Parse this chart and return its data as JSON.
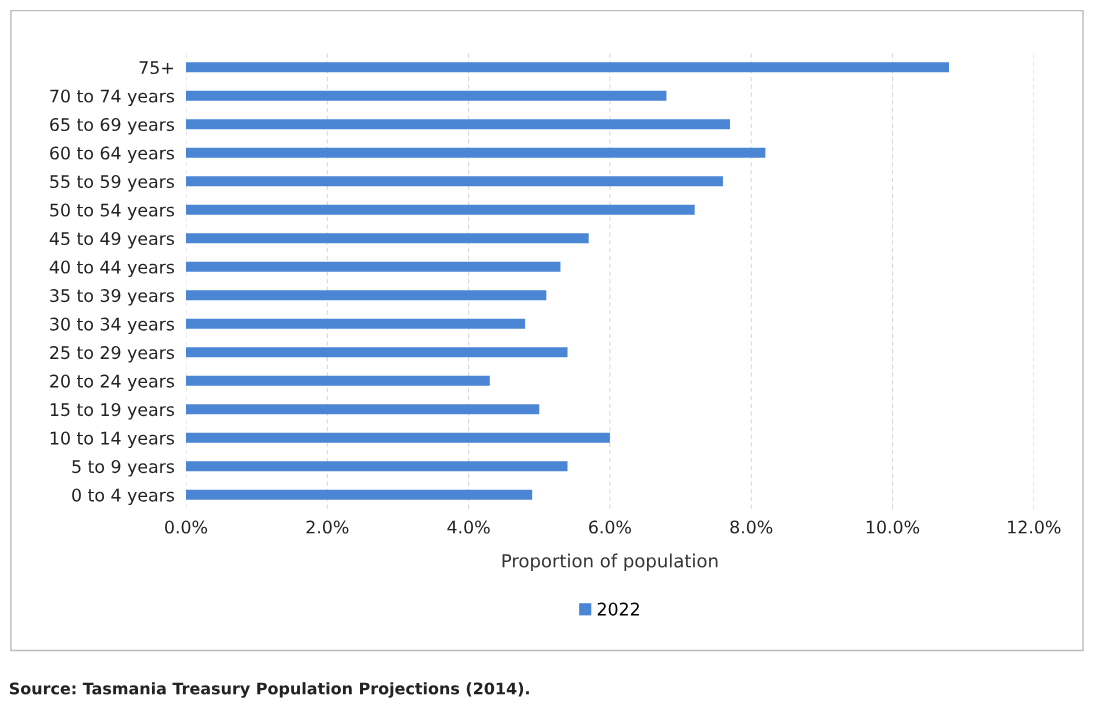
{
  "chart_data": {
    "type": "bar",
    "orientation": "horizontal",
    "categories": [
      "75+",
      "70 to 74 years",
      "65 to 69 years",
      "60 to 64 years",
      "55 to 59 years",
      "50 to 54 years",
      "45 to 49 years",
      "40 to 44 years",
      "35 to 39 years",
      "30 to 34 years",
      "25 to 29 years",
      "20 to 24 years",
      "15 to 19 years",
      "10 to 14 years",
      "5 to 9 years",
      "0 to 4 years"
    ],
    "series": [
      {
        "name": "2022",
        "color": "#4a86d4",
        "values": [
          10.8,
          6.8,
          7.7,
          8.2,
          7.6,
          7.2,
          5.7,
          5.3,
          5.1,
          4.8,
          5.4,
          4.3,
          5.0,
          6.0,
          5.4,
          4.9
        ]
      }
    ],
    "xlabel": "Proportion of population",
    "xlim": [
      0,
      12
    ],
    "xticks": [
      {
        "value": 0,
        "label": "0.0%"
      },
      {
        "value": 2,
        "label": "2.0%"
      },
      {
        "value": 4,
        "label": "4.0%"
      },
      {
        "value": 6,
        "label": "6.0%"
      },
      {
        "value": 8,
        "label": "8.0%"
      },
      {
        "value": 10,
        "label": "10.0%"
      },
      {
        "value": 12,
        "label": "12.0%"
      }
    ],
    "grid": "x",
    "legend": "bottom",
    "annotations": [
      "Source: Tasmania Treasury Population Projections (2014)."
    ]
  }
}
